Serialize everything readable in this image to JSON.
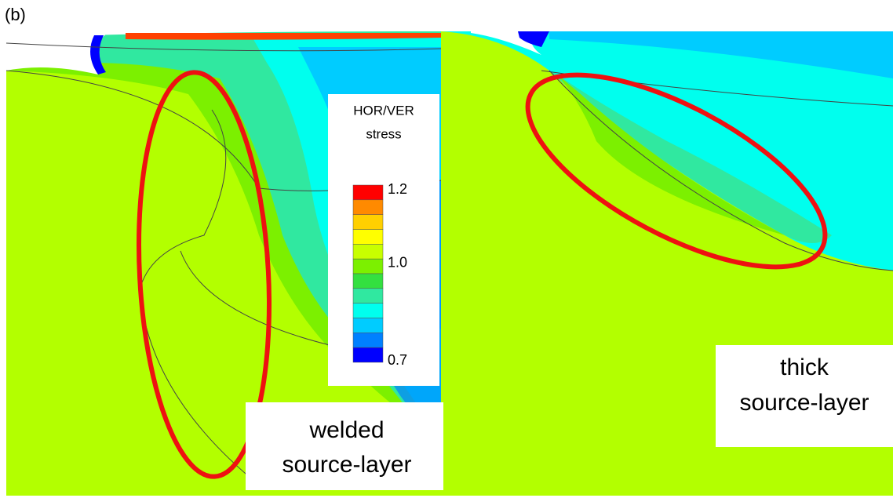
{
  "panel_label": "(b)",
  "legend": {
    "title": [
      "HOR/VER",
      "stress"
    ],
    "colors": [
      "#ff0000",
      "#ff8a00",
      "#ffd000",
      "#ffff00",
      "#c8ff00",
      "#7cf000",
      "#33e040",
      "#30e8a0",
      "#00ffee",
      "#00ccff",
      "#0080ff",
      "#0000ff"
    ],
    "labels": [
      "1.2",
      "1.0",
      "0.7"
    ]
  },
  "left_label": [
    "welded",
    "source-layer"
  ],
  "right_label": [
    "thick",
    "source-layer"
  ]
}
